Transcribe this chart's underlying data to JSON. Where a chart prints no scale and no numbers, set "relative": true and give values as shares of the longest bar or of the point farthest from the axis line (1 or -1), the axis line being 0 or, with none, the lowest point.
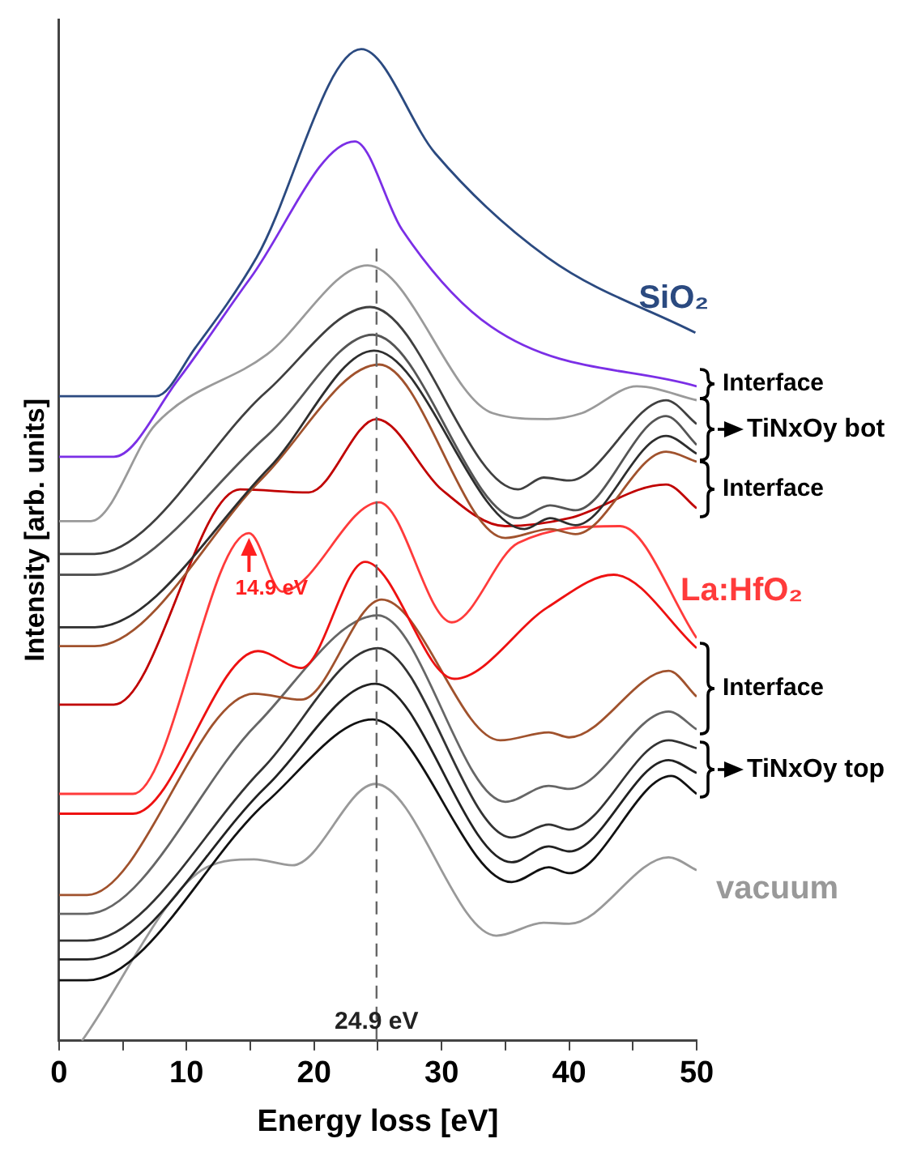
{
  "chart_data": {
    "type": "line",
    "relative": true,
    "xlabel": "Energy loss [eV]",
    "ylabel": "Intensity [arb. units]",
    "xlim": [
      0,
      50
    ],
    "xticks": [
      0,
      {
        "value": 5,
        "label": null
      },
      10,
      {
        "value": 15,
        "label": null
      },
      20,
      {
        "value": 25,
        "label": null
      },
      30,
      {
        "value": 35,
        "label": null
      },
      40,
      {
        "value": 45,
        "label": null
      },
      50
    ],
    "grid": false,
    "legend": false,
    "marker": "none",
    "line_style": "solid",
    "series": [
      {
        "name": "SiO₂",
        "color": "#2b4a80",
        "x": [
          0,
          7.6,
          10.7,
          15.5,
          23.7,
          29.5,
          38.3,
          49.9
        ],
        "values": [
          0.65,
          0.65,
          0.699,
          0.79,
          1.0,
          0.895,
          0.79,
          0.714
        ]
      },
      {
        "color": "#7b2fe6",
        "x": [
          0,
          4.3,
          9.3,
          15,
          23.2,
          26.9,
          33.9,
          50
        ],
        "values": [
          0.589,
          0.589,
          0.666,
          0.769,
          0.907,
          0.818,
          0.72,
          0.66
        ]
      },
      {
        "color": "#9a9a9a",
        "x": [
          0,
          2.5,
          7.6,
          16.3,
          24.2,
          34,
          38.3,
          41,
          45.3,
          50
        ],
        "values": [
          0.524,
          0.524,
          0.622,
          0.692,
          0.782,
          0.633,
          0.627,
          0.633,
          0.66,
          0.646
        ]
      },
      {
        "color": "#404040",
        "x": [
          0,
          2.8,
          16.3,
          24.4,
          36,
          38,
          40,
          47.6,
          50
        ],
        "values": [
          0.491,
          0.491,
          0.655,
          0.74,
          0.556,
          0.568,
          0.565,
          0.646,
          0.622
        ]
      },
      {
        "color": "#555555",
        "x": [
          0,
          2.8,
          16.3,
          24.6,
          36,
          38.5,
          40.5,
          47.6,
          50
        ],
        "values": [
          0.47,
          0.47,
          0.61,
          0.712,
          0.527,
          0.54,
          0.535,
          0.63,
          0.601
        ]
      },
      {
        "color": "#2e2e2e",
        "x": [
          0,
          2.8,
          16.5,
          24.7,
          36.5,
          38.5,
          40.5,
          47.6,
          50
        ],
        "values": [
          0.417,
          0.417,
          0.578,
          0.696,
          0.516,
          0.527,
          0.52,
          0.61,
          0.592
        ]
      },
      {
        "color": "#a0522d",
        "x": [
          0,
          2.8,
          16,
          25.1,
          35,
          38.5,
          40.5,
          47.6,
          50
        ],
        "values": [
          0.398,
          0.398,
          0.568,
          0.682,
          0.507,
          0.516,
          0.511,
          0.594,
          0.584
        ]
      },
      {
        "color": "#c00000",
        "x": [
          0,
          4.3,
          14.2,
          19.6,
          24.9,
          30,
          35,
          40,
          47.6,
          50
        ],
        "values": [
          0.339,
          0.339,
          0.556,
          0.553,
          0.627,
          0.556,
          0.519,
          0.527,
          0.561,
          0.537
        ]
      },
      {
        "name": "La:HfO₂",
        "color": "#ff3b3b",
        "x": [
          0,
          5.8,
          14.9,
          17.5,
          25.1,
          30.8,
          36,
          44,
          50
        ],
        "values": [
          0.249,
          0.249,
          0.512,
          0.453,
          0.543,
          0.422,
          0.502,
          0.519,
          0.406
        ]
      },
      {
        "color": "#ee1111",
        "x": [
          0,
          5.8,
          15.6,
          19,
          24,
          31,
          38.3,
          43.5,
          50
        ],
        "values": [
          0.229,
          0.229,
          0.393,
          0.376,
          0.483,
          0.365,
          0.437,
          0.47,
          0.396
        ]
      },
      {
        "color": "#a0522d",
        "x": [
          0,
          2.2,
          15.3,
          19,
          25.3,
          34.6,
          38.4,
          40,
          47.8,
          50
        ],
        "values": [
          0.147,
          0.147,
          0.35,
          0.344,
          0.445,
          0.303,
          0.311,
          0.306,
          0.373,
          0.347
        ]
      },
      {
        "color": "#666666",
        "x": [
          0,
          2.2,
          15.5,
          25,
          35,
          38.4,
          40,
          47.8,
          50
        ],
        "values": [
          0.128,
          0.128,
          0.319,
          0.429,
          0.241,
          0.257,
          0.254,
          0.332,
          0.314
        ]
      },
      {
        "color": "#333333",
        "x": [
          0,
          2.2,
          16,
          25,
          35.5,
          38.4,
          40,
          47.8,
          50
        ],
        "values": [
          0.101,
          0.101,
          0.275,
          0.396,
          0.205,
          0.218,
          0.213,
          0.303,
          0.295
        ]
      },
      {
        "color": "#222222",
        "x": [
          0,
          2.2,
          16.3,
          24.8,
          35.5,
          38.4,
          40,
          47.8,
          50
        ],
        "values": [
          0.082,
          0.082,
          0.257,
          0.36,
          0.18,
          0.196,
          0.191,
          0.283,
          0.27
        ]
      },
      {
        "color": "#111111",
        "x": [
          0,
          2.2,
          16.3,
          24.6,
          35.5,
          38.4,
          40,
          48,
          50
        ],
        "values": [
          0.061,
          0.061,
          0.241,
          0.324,
          0.16,
          0.175,
          0.169,
          0.267,
          0.249
        ]
      },
      {
        "name": "vacuum",
        "color": "#999999",
        "x": [
          1.8,
          11.6,
          15.3,
          18.3,
          24.8,
          34.3,
          38,
          40,
          47.8,
          50
        ],
        "values": [
          0,
          0.175,
          0.183,
          0.177,
          0.259,
          0.106,
          0.119,
          0.118,
          0.185,
          0.172
        ]
      }
    ],
    "ref_lines": [
      {
        "axis": "x",
        "value": 24.9,
        "label": "24.9 eV",
        "color": "#666666",
        "line_style": "dashed"
      }
    ],
    "annotations": [
      {
        "text": "14.9 eV",
        "x": 14.9,
        "y": 0.512
      },
      "Interface",
      "TiNxOy bot",
      "Interface",
      "Interface",
      "TiNxOy top"
    ]
  }
}
